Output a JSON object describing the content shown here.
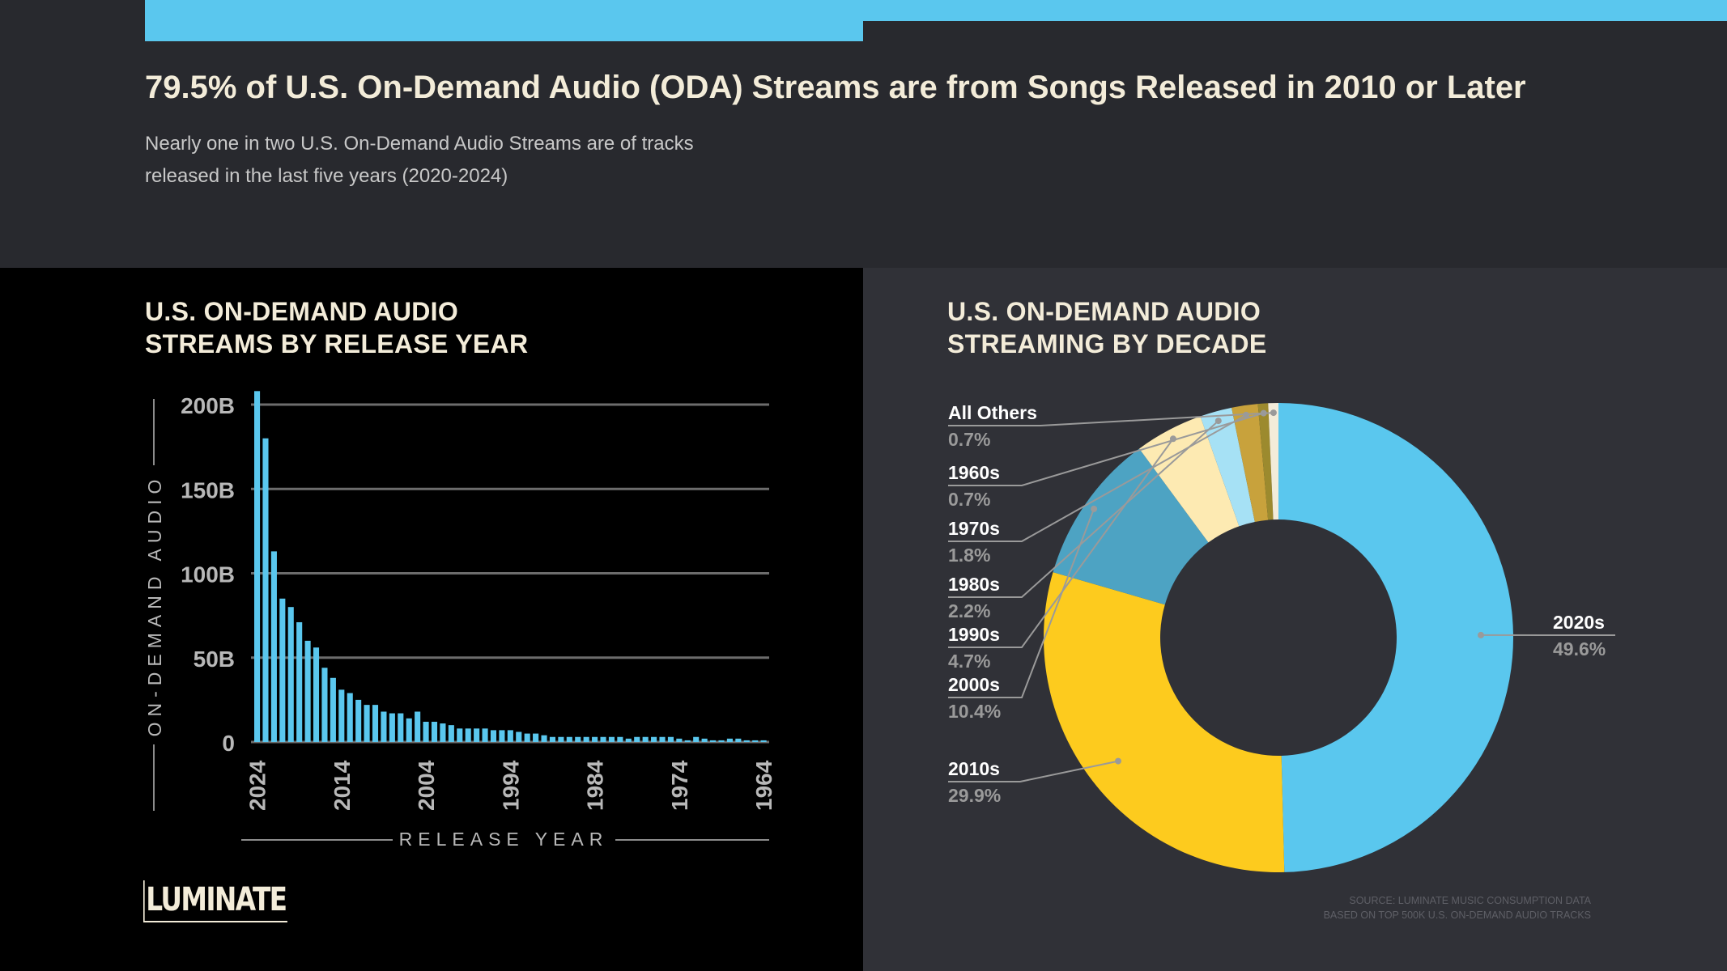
{
  "header": {
    "headline": "79.5% of U.S. On-Demand Audio (ODA) Streams are from Songs Released in 2010 or Later",
    "subhead_line1": "Nearly one in two U.S. On-Demand Audio Streams are of tracks",
    "subhead_line2": "released in the last five years (2020-2024)"
  },
  "left_panel": {
    "title_line1": "U.S. ON-DEMAND AUDIO",
    "title_line2": "STREAMS BY RELEASE YEAR"
  },
  "right_panel": {
    "title_line1": "U.S. ON-DEMAND AUDIO",
    "title_line2": "STREAMING BY DECADE"
  },
  "brand": {
    "logo": "LUMINATE"
  },
  "source": {
    "line1": "SOURCE: LUMINATE MUSIC CONSUMPTION DATA",
    "line2": "BASED ON TOP 500K U.S. ON-DEMAND AUDIO TRACKS"
  },
  "colors": {
    "accent_blue": "#5ac7ee",
    "yellow": "#fdcb1e",
    "teal": "#4da3c3",
    "pale_yellow": "#fdeab2",
    "light_blue": "#a6e1f5",
    "gold": "#c8a23c",
    "olive": "#9c8a2e",
    "cream": "#f3ecd9"
  },
  "chart_data": [
    {
      "type": "bar",
      "title": "U.S. ON-DEMAND AUDIO STREAMS BY RELEASE YEAR",
      "xlabel": "RELEASE YEAR",
      "ylabel": "ON-DEMAND AUDIO",
      "ylim": [
        0,
        200
      ],
      "y_ticks": [
        {
          "value": 0,
          "label": "0"
        },
        {
          "value": 50,
          "label": "50B"
        },
        {
          "value": 100,
          "label": "100B"
        },
        {
          "value": 150,
          "label": "150B"
        },
        {
          "value": 200,
          "label": "200B"
        }
      ],
      "x_tick_labels": [
        "2024",
        "2014",
        "2004",
        "1994",
        "1984",
        "1974",
        "1964"
      ],
      "grid": true,
      "categories": [
        "2024",
        "2023",
        "2022",
        "2021",
        "2020",
        "2019",
        "2018",
        "2017",
        "2016",
        "2015",
        "2014",
        "2013",
        "2012",
        "2011",
        "2010",
        "2009",
        "2008",
        "2007",
        "2006",
        "2005",
        "2004",
        "2003",
        "2002",
        "2001",
        "2000",
        "1999",
        "1998",
        "1997",
        "1996",
        "1995",
        "1994",
        "1993",
        "1992",
        "1991",
        "1990",
        "1989",
        "1988",
        "1987",
        "1986",
        "1985",
        "1984",
        "1983",
        "1982",
        "1981",
        "1980",
        "1979",
        "1978",
        "1977",
        "1976",
        "1975",
        "1974",
        "1973",
        "1972",
        "1971",
        "1970",
        "1969",
        "1968",
        "1967",
        "1966",
        "1965",
        "1964"
      ],
      "values": [
        208,
        180,
        113,
        85,
        80,
        71,
        60,
        56,
        44,
        38,
        31,
        29,
        25,
        22,
        22,
        18,
        17,
        17,
        14,
        18,
        12,
        12,
        11,
        10,
        8,
        8,
        8,
        8,
        7,
        7,
        7,
        6,
        5,
        5,
        4,
        3,
        3,
        3,
        3,
        3,
        3,
        3,
        3,
        3,
        2,
        3,
        3,
        3,
        3,
        3,
        2,
        1,
        3,
        2,
        1,
        1,
        2,
        2,
        1,
        1,
        1
      ]
    },
    {
      "type": "pie",
      "title": "U.S. ON-DEMAND AUDIO STREAMING BY DECADE",
      "slices": [
        {
          "label": "2020s",
          "value": 49.6,
          "display": "49.6%",
          "color": "#5ac7ee"
        },
        {
          "label": "2010s",
          "value": 29.9,
          "display": "29.9%",
          "color": "#fdcb1e"
        },
        {
          "label": "2000s",
          "value": 10.4,
          "display": "10.4%",
          "color": "#4da3c3"
        },
        {
          "label": "1990s",
          "value": 4.7,
          "display": "4.7%",
          "color": "#fdeab2"
        },
        {
          "label": "1980s",
          "value": 2.2,
          "display": "2.2%",
          "color": "#a6e1f5"
        },
        {
          "label": "1970s",
          "value": 1.8,
          "display": "1.8%",
          "color": "#c8a23c"
        },
        {
          "label": "1960s",
          "value": 0.7,
          "display": "0.7%",
          "color": "#9c8a2e"
        },
        {
          "label": "All Others",
          "value": 0.7,
          "display": "0.7%",
          "color": "#f3ecd9"
        }
      ]
    }
  ]
}
